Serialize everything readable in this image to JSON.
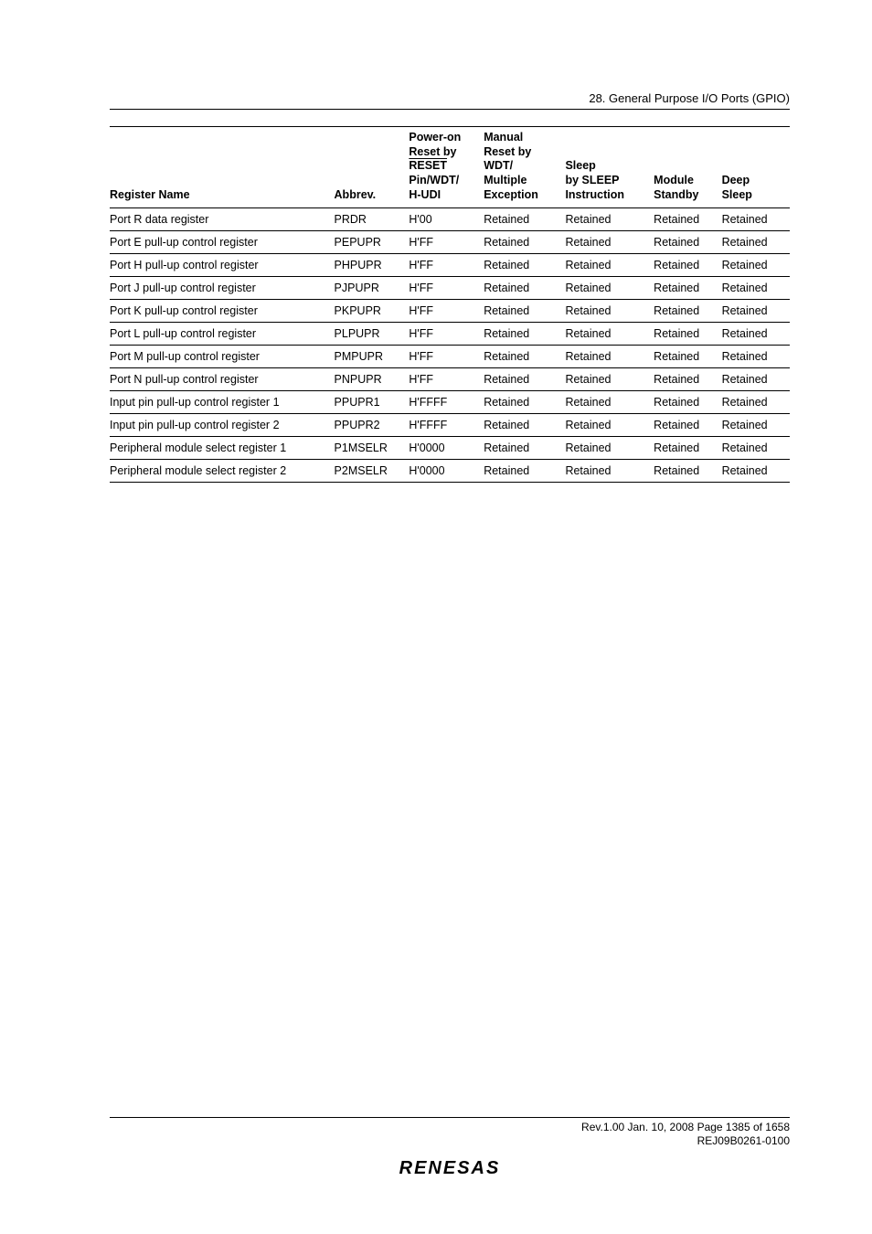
{
  "header": {
    "section": "28.   General Purpose I/O Ports (GPIO)"
  },
  "table": {
    "columns": {
      "name": "Register Name",
      "abbrev": "Abbrev.",
      "por_l1": "Power-on",
      "por_l2": "Reset by",
      "por_l3": "RESET",
      "por_l4": "Pin/WDT/",
      "por_l5": "H-UDI",
      "man_l1": "Manual",
      "man_l2": "Reset by",
      "man_l3": "WDT/",
      "man_l4": "Multiple",
      "man_l5": "Exception",
      "sleep_l1": "Sleep",
      "sleep_l2": "by SLEEP",
      "sleep_l3": "Instruction",
      "mod_l1": "Module",
      "mod_l2": "Standby",
      "deep_l1": "Deep",
      "deep_l2": "Sleep"
    },
    "rows": [
      {
        "name": "Port R data register",
        "abbrev": "PRDR",
        "por": "H'00",
        "man": "Retained",
        "sleep": "Retained",
        "mod": "Retained",
        "deep": "Retained"
      },
      {
        "name": "Port E pull-up control register",
        "abbrev": "PEPUPR",
        "por": "H'FF",
        "man": "Retained",
        "sleep": "Retained",
        "mod": "Retained",
        "deep": "Retained"
      },
      {
        "name": "Port H pull-up control register",
        "abbrev": "PHPUPR",
        "por": "H'FF",
        "man": "Retained",
        "sleep": "Retained",
        "mod": "Retained",
        "deep": "Retained"
      },
      {
        "name": "Port J pull-up control register",
        "abbrev": "PJPUPR",
        "por": "H'FF",
        "man": "Retained",
        "sleep": "Retained",
        "mod": "Retained",
        "deep": "Retained"
      },
      {
        "name": "Port K pull-up control register",
        "abbrev": "PKPUPR",
        "por": "H'FF",
        "man": "Retained",
        "sleep": "Retained",
        "mod": "Retained",
        "deep": "Retained"
      },
      {
        "name": "Port L pull-up control register",
        "abbrev": "PLPUPR",
        "por": "H'FF",
        "man": "Retained",
        "sleep": "Retained",
        "mod": "Retained",
        "deep": "Retained"
      },
      {
        "name": "Port M pull-up control register",
        "abbrev": "PMPUPR",
        "por": "H'FF",
        "man": "Retained",
        "sleep": "Retained",
        "mod": "Retained",
        "deep": "Retained"
      },
      {
        "name": "Port N pull-up control register",
        "abbrev": "PNPUPR",
        "por": "H'FF",
        "man": "Retained",
        "sleep": "Retained",
        "mod": "Retained",
        "deep": "Retained"
      },
      {
        "name": "Input pin pull-up control register 1",
        "abbrev": "PPUPR1",
        "por": "H'FFFF",
        "man": "Retained",
        "sleep": "Retained",
        "mod": "Retained",
        "deep": "Retained"
      },
      {
        "name": "Input pin pull-up control register 2",
        "abbrev": "PPUPR2",
        "por": "H'FFFF",
        "man": "Retained",
        "sleep": "Retained",
        "mod": "Retained",
        "deep": "Retained"
      },
      {
        "name": "Peripheral module select register 1",
        "abbrev": "P1MSELR",
        "por": "H'0000",
        "man": "Retained",
        "sleep": "Retained",
        "mod": "Retained",
        "deep": "Retained"
      },
      {
        "name": "Peripheral module select register 2",
        "abbrev": "P2MSELR",
        "por": "H'0000",
        "man": "Retained",
        "sleep": "Retained",
        "mod": "Retained",
        "deep": "Retained"
      }
    ]
  },
  "footer": {
    "line1": "Rev.1.00  Jan. 10, 2008  Page 1385 of 1658",
    "line2": "REJ09B0261-0100",
    "logo": "RENESAS"
  }
}
